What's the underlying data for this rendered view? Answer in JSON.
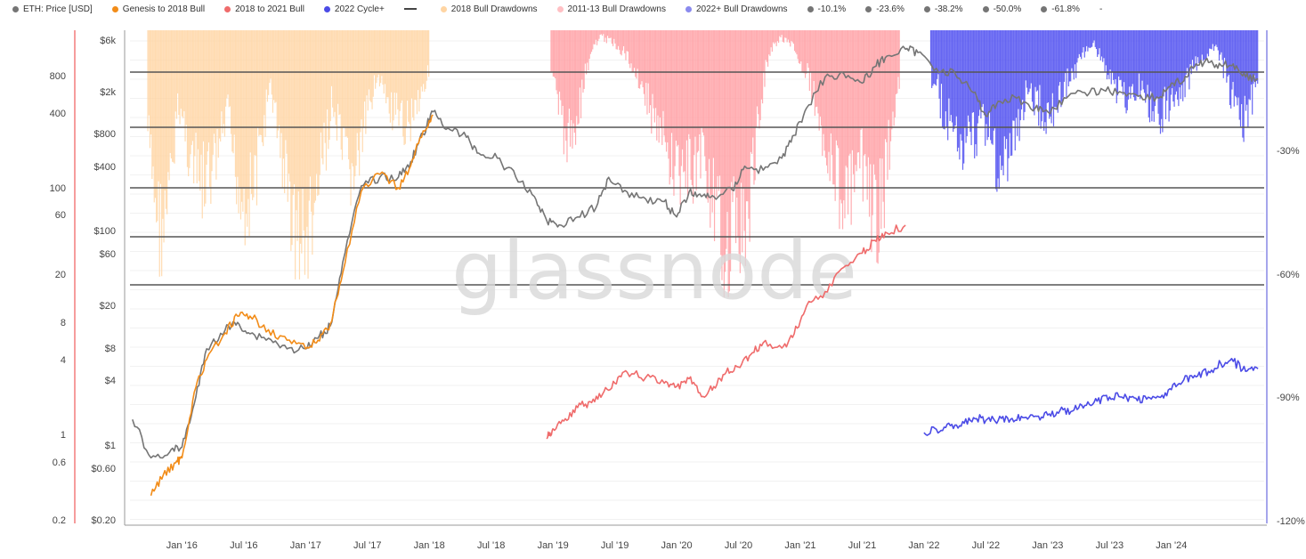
{
  "legend": [
    {
      "label": "ETH: Price [USD]",
      "color": "#757575",
      "kind": "dot"
    },
    {
      "label": "Genesis to 2018 Bull",
      "color": "#f28c18",
      "kind": "dot"
    },
    {
      "label": "2018 to 2021 Bull",
      "color": "#ef6b6b",
      "kind": "dot"
    },
    {
      "label": "2022 Cycle+",
      "color": "#4b4be6",
      "kind": "dot"
    },
    {
      "label": "",
      "color": "#444444",
      "kind": "line"
    },
    {
      "label": "2018 Bull Drawdowns",
      "color": "#ffd5a3",
      "kind": "dot"
    },
    {
      "label": "2011-13 Bull Drawdowns",
      "color": "#ffc0c4",
      "kind": "dot"
    },
    {
      "label": "2022+ Bull Drawdowns",
      "color": "#8a8aee",
      "kind": "dot"
    },
    {
      "label": "-10.1%",
      "color": "#757575",
      "kind": "dot"
    },
    {
      "label": "-23.6%",
      "color": "#757575",
      "kind": "dot"
    },
    {
      "label": "-38.2%",
      "color": "#757575",
      "kind": "dot"
    },
    {
      "label": "-50.0%",
      "color": "#757575",
      "kind": "dot"
    },
    {
      "label": "-61.8%",
      "color": "#757575",
      "kind": "dot"
    },
    {
      "label": "-",
      "color": "",
      "kind": "none"
    }
  ],
  "watermark": "glassnode",
  "chart_data": {
    "type": "line",
    "x_ticks": [
      "Jan '16",
      "Jul '16",
      "Jan '17",
      "Jul '17",
      "Jan '18",
      "Jul '18",
      "Jan '19",
      "Jul '19",
      "Jan '20",
      "Jul '20",
      "Jan '21",
      "Jul '21",
      "Jan '22",
      "Jul '22",
      "Jan '23",
      "Jul '23",
      "Jan '24"
    ],
    "y_left_outer_ticks": [
      "800",
      "400",
      "100",
      "60",
      "20",
      "8",
      "4",
      "1",
      "0.6",
      "0.2"
    ],
    "y_left_inner_ticks": [
      "$6k",
      "$2k",
      "$800",
      "$400",
      "$100",
      "$60",
      "$20",
      "$8",
      "$4",
      "$1",
      "$0.60",
      "$0.20"
    ],
    "y_right_ticks": [
      "-30%",
      "-60%",
      "-90%",
      "-120%"
    ],
    "fib_levels": [
      "-10.1%",
      "-23.6%",
      "-38.2%",
      "-50.0%",
      "-61.8%"
    ],
    "colors": {
      "eth": "#757575",
      "genesis": "#f28c18",
      "bull2018_2021": "#ef6b6b",
      "cycle2022": "#4b4be6",
      "dd2018": "#ffd5a3",
      "dd2011": "#ff9fa3",
      "dd2022": "#4b4bf0",
      "fib": "#555555",
      "left_axis": "#ef5b5b",
      "right_axis": "#6b6bdf"
    },
    "series": [
      {
        "name": "ETH: Price [USD]",
        "x": [
          2015.6,
          2015.75,
          2015.9,
          2016.0,
          2016.1,
          2016.2,
          2016.35,
          2016.45,
          2016.55,
          2016.7,
          2016.85,
          2017.0,
          2017.1,
          2017.2,
          2017.3,
          2017.45,
          2017.6,
          2017.75,
          2017.85,
          2017.95,
          2018.03,
          2018.15,
          2018.3,
          2018.4,
          2018.55,
          2018.7,
          2018.85,
          2018.95,
          2019.05,
          2019.2,
          2019.35,
          2019.45,
          2019.6,
          2019.75,
          2019.9,
          2020.0,
          2020.1,
          2020.2,
          2020.3,
          2020.45,
          2020.55,
          2020.7,
          2020.85,
          2020.95,
          2021.05,
          2021.2,
          2021.35,
          2021.5,
          2021.6,
          2021.7,
          2021.85,
          2021.95,
          2022.1,
          2022.25,
          2022.4,
          2022.5,
          2022.6,
          2022.75,
          2022.9,
          2023.0,
          2023.15,
          2023.3,
          2023.45,
          2023.6,
          2023.75,
          2023.9,
          2024.0,
          2024.1,
          2024.2,
          2024.3,
          2024.4,
          2024.5,
          2024.6,
          2024.7
        ],
        "y": [
          1.8,
          0.8,
          0.9,
          1,
          2.5,
          8,
          12,
          14,
          11,
          10,
          8,
          8,
          10,
          13,
          50,
          250,
          300,
          300,
          420,
          750,
          1200,
          850,
          700,
          500,
          450,
          300,
          200,
          120,
          110,
          130,
          160,
          300,
          220,
          190,
          180,
          130,
          220,
          200,
          200,
          230,
          380,
          350,
          450,
          730,
          1300,
          2500,
          2700,
          2200,
          3100,
          3900,
          4500,
          4200,
          3000,
          2700,
          1800,
          1100,
          1500,
          1600,
          1300,
          1200,
          1600,
          1800,
          1900,
          1800,
          1700,
          1600,
          2200,
          2300,
          3300,
          3400,
          3200,
          3300,
          2500,
          2400
        ]
      },
      {
        "name": "Genesis to 2018 Bull",
        "x": [
          2015.75,
          2015.85,
          2015.95,
          2016.0,
          2016.1,
          2016.2,
          2016.35,
          2016.45,
          2016.55,
          2016.7,
          2016.85,
          2017.0,
          2017.1,
          2017.2,
          2017.3,
          2017.45,
          2017.6,
          2017.75,
          2017.85,
          2017.95,
          2018.03
        ],
        "y": [
          0.45,
          0.7,
          0.9,
          1,
          4,
          8,
          14,
          20,
          20,
          15,
          12,
          10,
          12,
          17,
          50,
          280,
          400,
          300,
          480,
          1000,
          1400
        ]
      },
      {
        "name": "2018 to 2021 Bull",
        "x": [
          2018.95,
          2019.0,
          2019.1,
          2019.2,
          2019.3,
          2019.4,
          2019.5,
          2019.6,
          2019.75,
          2019.9,
          2020.0,
          2020.1,
          2020.2,
          2020.3,
          2020.4,
          2020.5,
          2020.6,
          2020.7,
          2020.85,
          2020.95,
          2021.05,
          2021.2,
          2021.35,
          2021.5,
          2021.6,
          2021.7,
          2021.85
        ],
        "y": [
          0.45,
          0.6,
          0.8,
          1.1,
          1.3,
          1.6,
          2.2,
          3,
          2.6,
          2.2,
          2,
          2.5,
          1.5,
          2,
          3,
          3.5,
          5,
          7,
          6,
          9,
          20,
          30,
          60,
          90,
          130,
          160,
          200
        ]
      },
      {
        "name": "2022 Cycle+",
        "x": [
          2022.0,
          2022.1,
          2022.2,
          2022.3,
          2022.4,
          2022.5,
          2022.6,
          2022.7,
          2022.8,
          2022.9,
          2023.0,
          2023.1,
          2023.2,
          2023.3,
          2023.4,
          2023.5,
          2023.6,
          2023.7,
          2023.8,
          2023.9,
          2024.0,
          2024.1,
          2024.2,
          2024.3,
          2024.4,
          2024.5,
          2024.6,
          2024.7
        ],
        "y": [
          1,
          1.05,
          1.15,
          1.1,
          1.25,
          1.2,
          1.2,
          1.22,
          1.25,
          1.28,
          1.3,
          1.4,
          1.38,
          1.5,
          1.6,
          1.7,
          1.7,
          1.68,
          1.65,
          1.7,
          1.9,
          2.2,
          2.3,
          2.5,
          2.8,
          2.9,
          2.5,
          2.6
        ]
      }
    ]
  }
}
